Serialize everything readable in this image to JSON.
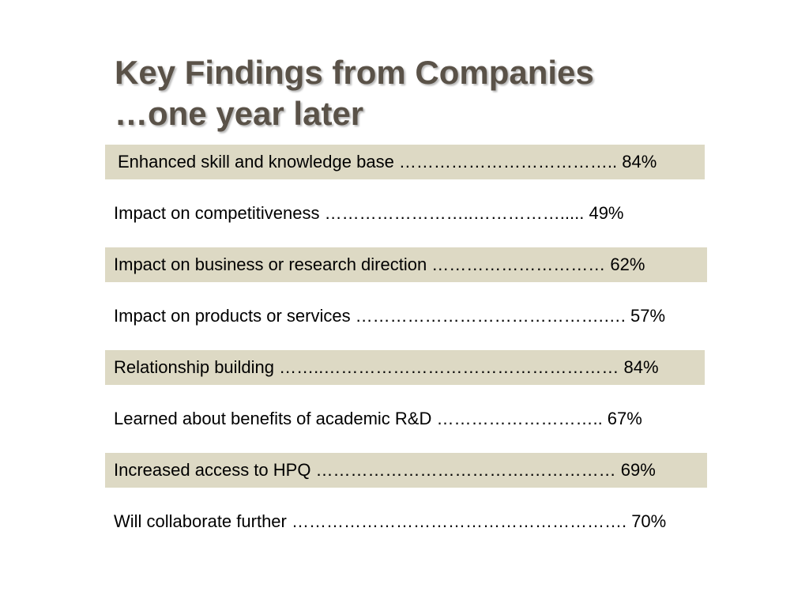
{
  "slide": {
    "title_lines": [
      "Key Findings from Companies",
      "…one year later"
    ],
    "findings": [
      {
        "text": " Enhanced skill and knowledge base ……………………………….. 84%",
        "shaded": true
      },
      {
        "text": "Impact on competitiveness ……………………..…………….....  49%",
        "shaded": false
      },
      {
        "text": "Impact on business or research direction ………………………… 62%",
        "shaded": true
      },
      {
        "text": "Impact on products or services …………………………………….…. 57%",
        "shaded": false
      },
      {
        "text": "Relationship building ……..…………………………………………… 84%",
        "shaded": true
      },
      {
        "text": "Learned about benefits of academic R&D ……………………….. 67%",
        "shaded": false
      },
      {
        "text": "Increased access to HPQ ……………………………….…………… 69%",
        "shaded": true
      },
      {
        "text": "Will collaborate further …………………………………………………. 70%",
        "shaded": false
      }
    ],
    "colors": {
      "title": "#5a5248",
      "row_shade": "#ddd9c4",
      "text": "#000000",
      "background": "#ffffff"
    }
  }
}
